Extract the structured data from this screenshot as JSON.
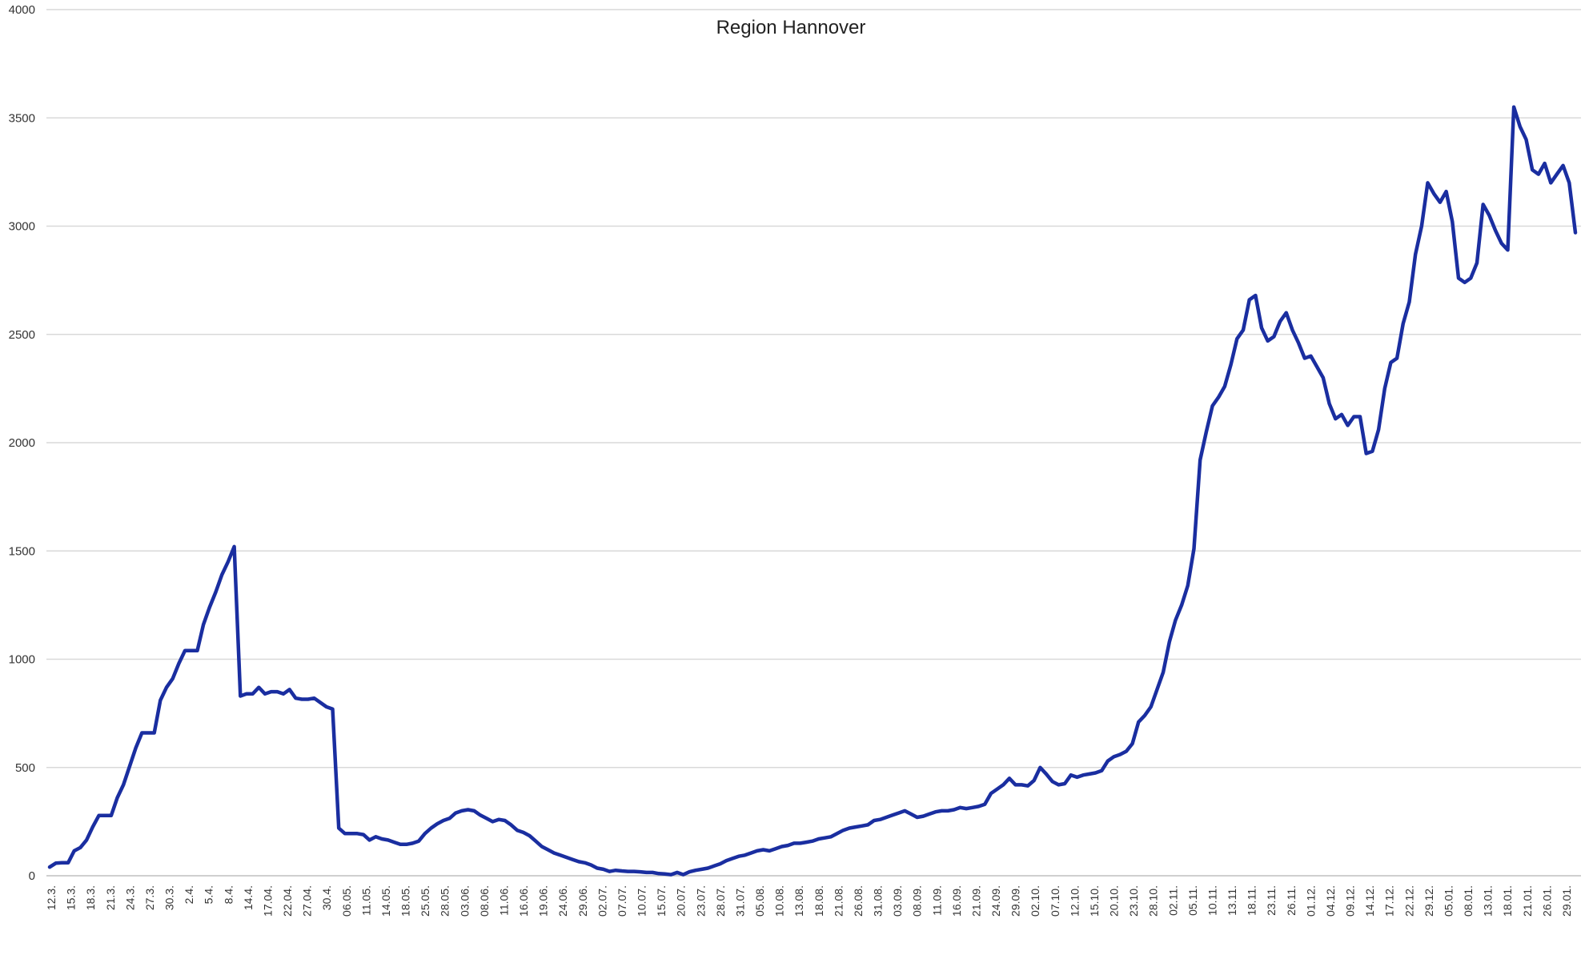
{
  "chart_data": {
    "type": "line",
    "title": "Region Hannover",
    "xlabel": "",
    "ylabel": "",
    "ylim": [
      0,
      4000
    ],
    "yticks": [
      0,
      500,
      1000,
      1500,
      2000,
      2500,
      3000,
      3500,
      4000
    ],
    "grid": true,
    "legend": "none",
    "line_color": "#1a2ea0",
    "x_tick_labels": [
      "12.3.",
      "15.3.",
      "18.3.",
      "21.3.",
      "24.3.",
      "27.3.",
      "30.3.",
      "2.4.",
      "5.4.",
      "8.4.",
      "14.4.",
      "17.04.",
      "22.04.",
      "27.04.",
      "30.4.",
      "06.05.",
      "11.05.",
      "14.05.",
      "18.05.",
      "25.05.",
      "28.05.",
      "03.06.",
      "08.06.",
      "11.06.",
      "16.06.",
      "19.06.",
      "24.06.",
      "29.06.",
      "02.07.",
      "07.07.",
      "10.07.",
      "15.07.",
      "20.07.",
      "23.07.",
      "28.07.",
      "31.07.",
      "05.08.",
      "10.08.",
      "13.08.",
      "18.08.",
      "21.08.",
      "26.08.",
      "31.08.",
      "03.09.",
      "08.09.",
      "11.09.",
      "16.09.",
      "21.09.",
      "24.09.",
      "29.09.",
      "02.10.",
      "07.10.",
      "12.10.",
      "15.10.",
      "20.10.",
      "23.10.",
      "28.10.",
      "02.11.",
      "05.11.",
      "10.11.",
      "13.11.",
      "18.11.",
      "23.11.",
      "26.11.",
      "01.12.",
      "04.12.",
      "09.12.",
      "14.12.",
      "17.12.",
      "22.12.",
      "29.12.",
      "05.01.",
      "08.01.",
      "13.01.",
      "18.01.",
      "21.01.",
      "26.01.",
      "29.01."
    ],
    "series": [
      {
        "values": [
          40,
          58,
          60,
          60,
          115,
          130,
          165,
          225,
          278,
          278,
          278,
          360,
          420,
          505,
          590,
          660,
          660,
          660,
          810,
          870,
          910,
          980,
          1040,
          1040,
          1040,
          1160,
          1240,
          1310,
          1390,
          1450,
          1520,
          830,
          840,
          840,
          870,
          840,
          850,
          850,
          840,
          860,
          820,
          815,
          815,
          820,
          800,
          780,
          770,
          220,
          195,
          195,
          195,
          190,
          165,
          180,
          170,
          165,
          155,
          145,
          145,
          150,
          160,
          195,
          220,
          240,
          255,
          265,
          290,
          300,
          305,
          300,
          280,
          265,
          250,
          260,
          255,
          235,
          210,
          200,
          185,
          160,
          135,
          120,
          105,
          95,
          85,
          75,
          65,
          60,
          50,
          35,
          30,
          20,
          25,
          22,
          20,
          20,
          18,
          15,
          15,
          10,
          8,
          5,
          15,
          5,
          18,
          25,
          30,
          35,
          45,
          55,
          70,
          80,
          90,
          95,
          105,
          115,
          120,
          115,
          125,
          135,
          140,
          150,
          150,
          155,
          160,
          170,
          175,
          180,
          195,
          210,
          220,
          225,
          230,
          235,
          255,
          260,
          270,
          280,
          290,
          300,
          285,
          270,
          275,
          285,
          295,
          300,
          300,
          305,
          315,
          310,
          315,
          320,
          330,
          380,
          400,
          420,
          450,
          420,
          420,
          415,
          440,
          500,
          470,
          435,
          420,
          425,
          465,
          455,
          465,
          470,
          475,
          485,
          530,
          550,
          560,
          575,
          610,
          710,
          740,
          780,
          860,
          940,
          1080,
          1180,
          1250,
          1340,
          1510,
          1920,
          2050,
          2170,
          2210,
          2260,
          2360,
          2480,
          2520,
          2660,
          2680,
          2530,
          2470,
          2490,
          2560,
          2600,
          2520,
          2460,
          2390,
          2400,
          2350,
          2300,
          2180,
          2110,
          2130,
          2080,
          2120,
          2120,
          1950,
          1960,
          2060,
          2250,
          2370,
          2390,
          2550,
          2650,
          2870,
          3000,
          3200,
          3150,
          3110,
          3160,
          3020,
          2760,
          2740,
          2760,
          2830,
          3100,
          3050,
          2980,
          2920,
          2890,
          3550,
          3460,
          3400,
          3260,
          3240,
          3290,
          3200,
          3240,
          3280,
          3200,
          2970
        ]
      }
    ]
  }
}
